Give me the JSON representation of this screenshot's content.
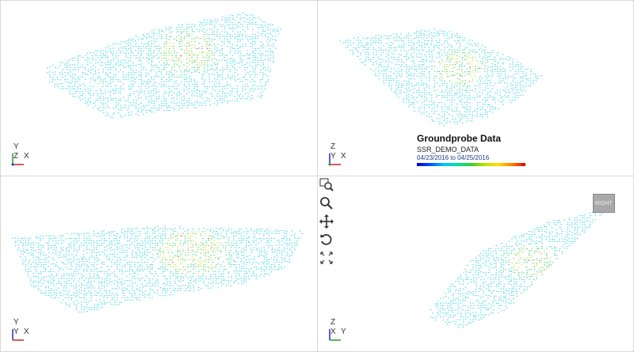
{
  "viewports": [
    {
      "name": "top-left",
      "triad": {
        "up": "Y",
        "mid": "Z",
        "right": "X"
      }
    },
    {
      "name": "top-right",
      "triad": {
        "up": "Z",
        "mid": "Y",
        "right": "X"
      }
    },
    {
      "name": "bottom-left",
      "triad": {
        "up": "Y",
        "mid": "Y",
        "right": "X"
      }
    },
    {
      "name": "bottom-right",
      "triad": {
        "up": "Z",
        "mid": "X",
        "right": "Y"
      }
    }
  ],
  "legend": {
    "title": "Groundprobe Data",
    "subtitle": "SSR_DEMO_DATA",
    "date_range": "04/23/2016 to 04/25/2016"
  },
  "toolbar": {
    "items": [
      "zoom-window-icon",
      "zoom-icon",
      "pan-icon",
      "rotate-icon",
      "fit-extents-icon"
    ]
  },
  "view_cube": {
    "label": "RIGHT"
  },
  "colors": {
    "base": "#3fd6e0",
    "mid": "#40d080",
    "hot": "#c8e040",
    "peak": "#e03030",
    "border": "#d8d8d8"
  }
}
